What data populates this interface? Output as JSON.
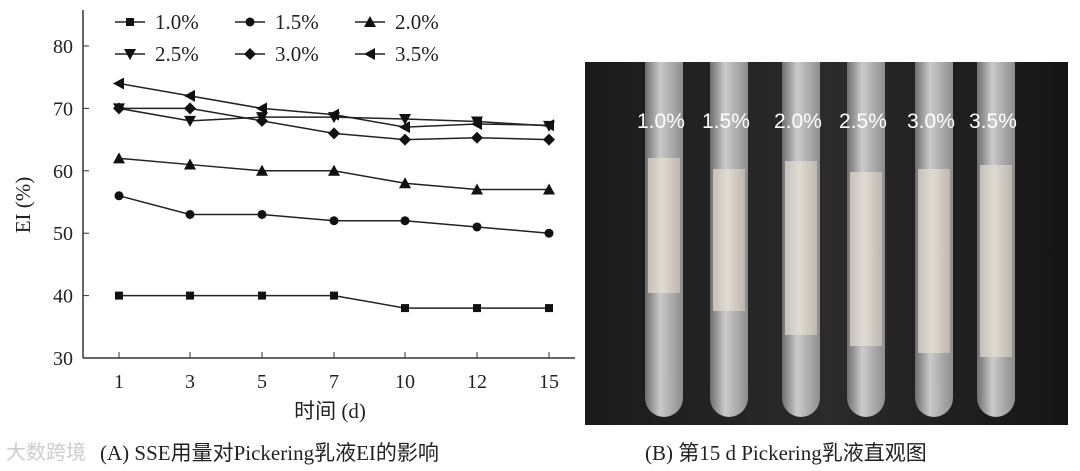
{
  "chart_data": {
    "type": "line",
    "title": "(A) SSE用量对Pickering乳液EI的影响",
    "xlabel": "时间 (d)",
    "ylabel": "EI (%)",
    "categories": [
      "1",
      "3",
      "5",
      "7",
      "10",
      "12",
      "15"
    ],
    "ylim": [
      30,
      80
    ],
    "yticks": [
      30,
      40,
      50,
      60,
      70,
      80
    ],
    "legend_position": "top",
    "series": [
      {
        "name": "1.0%",
        "marker": "square",
        "values": [
          40,
          40,
          40,
          40,
          38,
          38,
          38
        ]
      },
      {
        "name": "1.5%",
        "marker": "circle",
        "values": [
          56,
          53,
          53,
          52,
          52,
          51,
          50
        ]
      },
      {
        "name": "2.0%",
        "marker": "triangle-up",
        "values": [
          62,
          61,
          60,
          60,
          58,
          57,
          57
        ]
      },
      {
        "name": "2.5%",
        "marker": "triangle-down",
        "values": [
          70,
          68,
          68.6,
          68.6,
          68.3,
          67.9,
          67.2
        ]
      },
      {
        "name": "3.0%",
        "marker": "diamond",
        "values": [
          70,
          70,
          68,
          66,
          65,
          65.3,
          65
        ]
      },
      {
        "name": "3.5%",
        "marker": "triangle-left",
        "values": [
          74,
          72,
          70,
          69,
          67,
          67.5,
          67.3
        ]
      }
    ]
  },
  "photo": {
    "caption": "(B) 第15 d Pickering乳液直观图",
    "labels": [
      "1.0%",
      "1.5%",
      "2.0%",
      "2.5%",
      "3.0%",
      "3.5%"
    ],
    "emulsion_top": [
      0.27,
      0.3,
      0.28,
      0.31,
      0.3,
      0.29
    ],
    "emulsion_bottom": [
      0.65,
      0.7,
      0.77,
      0.8,
      0.82,
      0.83
    ]
  },
  "watermark": "大数跨境"
}
